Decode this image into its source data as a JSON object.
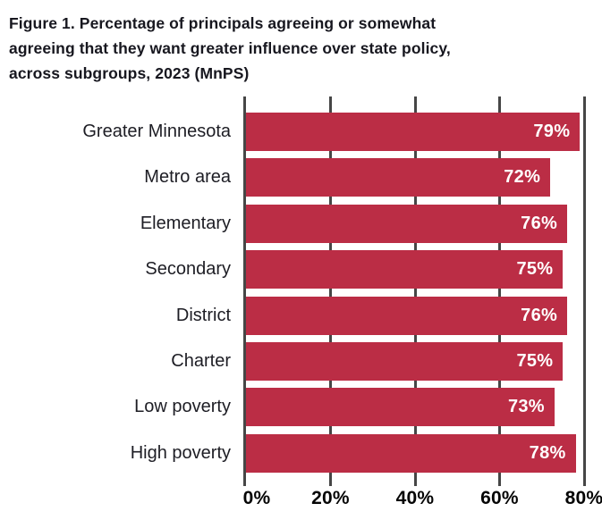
{
  "title_lines": [
    "Figure 1. Percentage of principals agreeing or somewhat",
    "agreeing that they want greater influence over state policy,",
    "across subgroups, 2023 (MnPS)"
  ],
  "chart_data": {
    "type": "bar",
    "orientation": "horizontal",
    "title": "Figure 1. Percentage of principals agreeing or somewhat agreeing that they want greater influence over state policy, across subgroups, 2023 (MnPS)",
    "categories": [
      "Greater Minnesota",
      "Metro area",
      "Elementary",
      "Secondary",
      "District",
      "Charter",
      "Low poverty",
      "High poverty"
    ],
    "values": [
      79,
      72,
      76,
      75,
      76,
      75,
      73,
      78
    ],
    "value_labels": [
      "79%",
      "72%",
      "76%",
      "75%",
      "76%",
      "75%",
      "73%",
      "78%"
    ],
    "x_ticks": [
      "0%",
      "20%",
      "40%",
      "60%",
      "80%"
    ],
    "xlim": [
      0,
      80
    ],
    "xlabel": "",
    "ylabel": "",
    "grid": "vertical-gridlines-on",
    "legend": "none",
    "bar_color": "#bb2d45",
    "gridline_color": "#464646",
    "value_label_color": "#ffffff",
    "category_label_color": "#1d1d24",
    "title_color": "#17171f"
  }
}
